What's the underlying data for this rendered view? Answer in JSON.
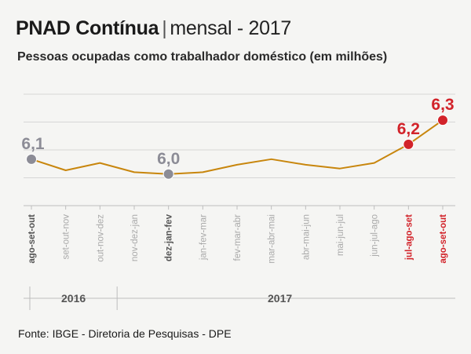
{
  "header": {
    "title_bold": "PNAD Contínua",
    "title_separator": "|",
    "title_light": "mensal - 2017",
    "subtitle": "Pessoas ocupadas como trabalhador doméstico (em milhões)"
  },
  "source": "Fonte: IBGE - Diretoria de Pesquisas - DPE",
  "colors": {
    "line": "#c8860d",
    "grid": "#d6d6d6",
    "grey_point": "#8c8c96",
    "red_point": "#d2232a",
    "muted_label": "#a9a9a9",
    "dark_label": "#555555"
  },
  "chart_data": {
    "type": "line",
    "title": "Pessoas ocupadas como trabalhador doméstico (em milhões)",
    "categories": [
      "ago-set-out",
      "set-out-nov",
      "out-nov-dez",
      "nov-dez-jan",
      "dez-jan-fev",
      "jan-fev-mar",
      "fev-mar-abr",
      "mar-abr-mai",
      "abr-mai-jun",
      "mai-jun-jul",
      "jun-jul-ago",
      "jul-ago-set",
      "ago-set-out"
    ],
    "series": [
      {
        "values": [
          6.1,
          6.04,
          6.08,
          6.03,
          6.02,
          6.03,
          6.07,
          6.1,
          6.07,
          6.05,
          6.08,
          6.18,
          6.31
        ]
      }
    ],
    "highlighted_points": [
      {
        "index": 0,
        "label": "6,1",
        "color": "grey"
      },
      {
        "index": 4,
        "label": "6,0",
        "color": "grey"
      },
      {
        "index": 11,
        "label": "6,2",
        "color": "red"
      },
      {
        "index": 12,
        "label": "6,3",
        "color": "red"
      }
    ],
    "category_label_styles": [
      "dark",
      "muted",
      "muted",
      "muted",
      "dark",
      "muted",
      "muted",
      "muted",
      "muted",
      "muted",
      "muted",
      "red",
      "red"
    ],
    "year_groups": [
      {
        "label": "2016",
        "start": 0,
        "end": 2
      },
      {
        "label": "2017",
        "start": 3,
        "end": 12
      }
    ],
    "ylim": [
      5.85,
      6.45
    ],
    "grid": true,
    "legend": "none"
  }
}
